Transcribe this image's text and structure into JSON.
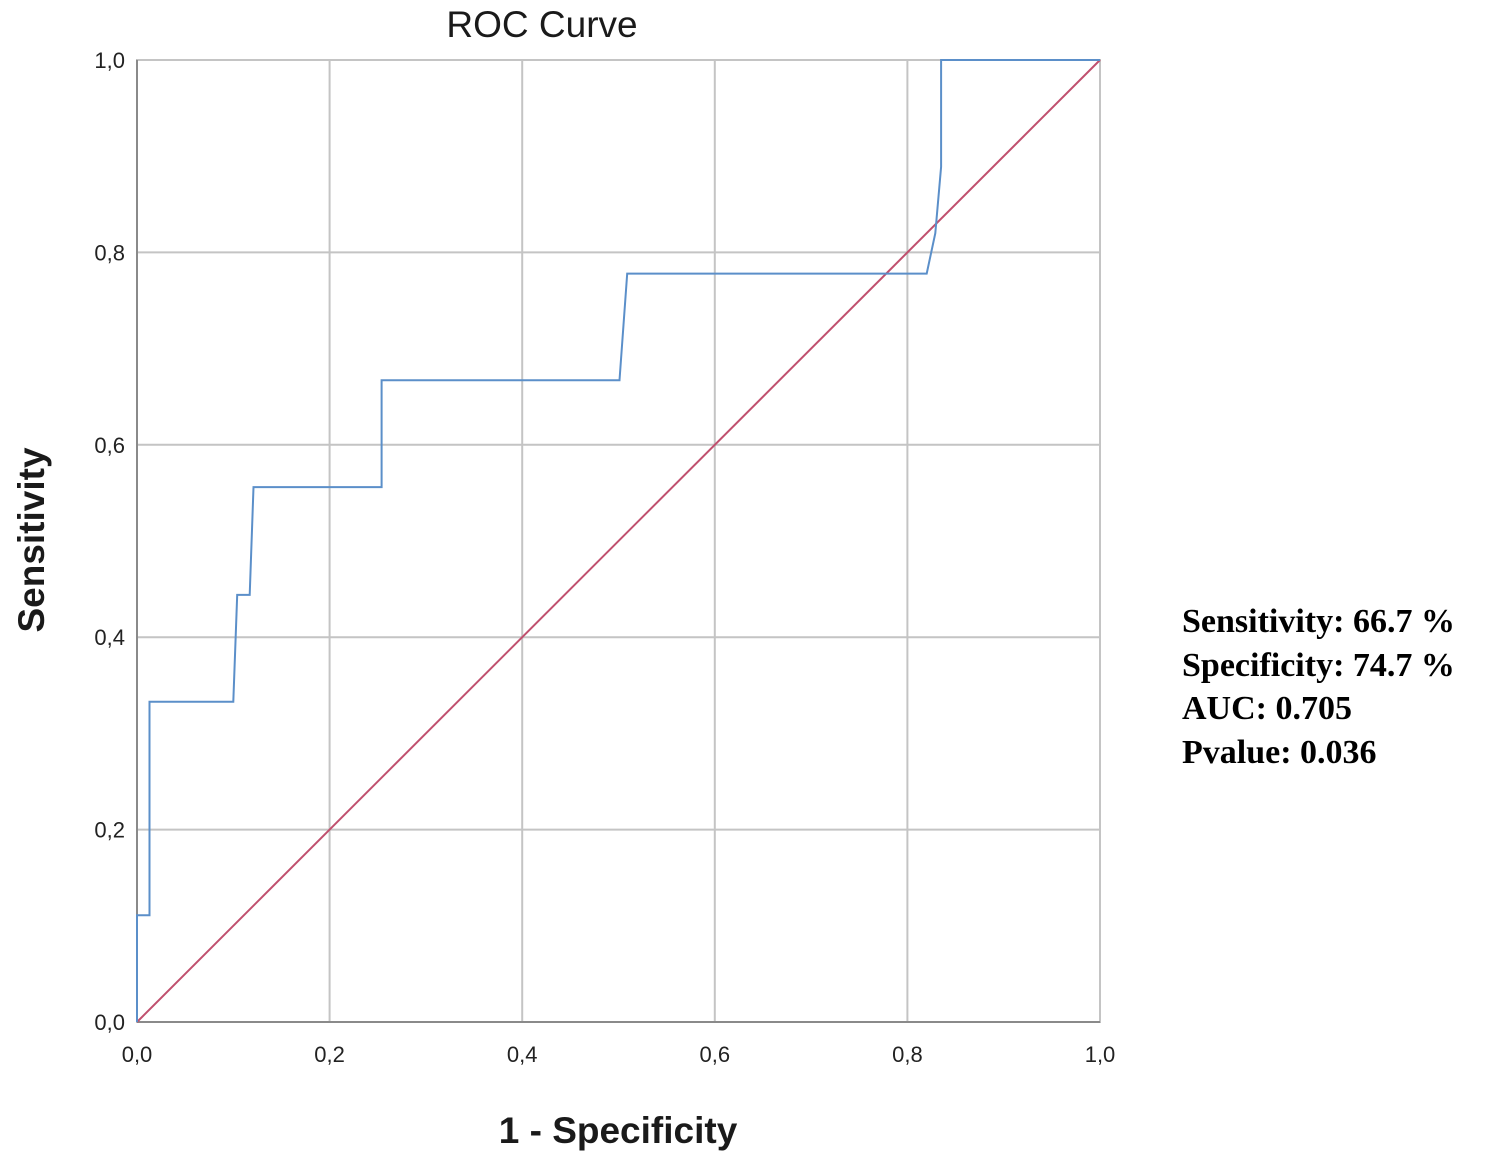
{
  "chart_data": {
    "type": "line",
    "title": "ROC Curve",
    "xlabel": "1 - Specificity",
    "ylabel": "Sensitivity",
    "xlim": [
      0,
      1
    ],
    "ylim": [
      0,
      1
    ],
    "grid": true,
    "x_ticks": [
      {
        "value": 0.0,
        "label": "0,0"
      },
      {
        "value": 0.2,
        "label": "0,2"
      },
      {
        "value": 0.4,
        "label": "0,4"
      },
      {
        "value": 0.6,
        "label": "0,6"
      },
      {
        "value": 0.8,
        "label": "0,8"
      },
      {
        "value": 1.0,
        "label": "1,0"
      }
    ],
    "y_ticks": [
      {
        "value": 0.0,
        "label": "0,0"
      },
      {
        "value": 0.2,
        "label": "0,2"
      },
      {
        "value": 0.4,
        "label": "0,4"
      },
      {
        "value": 0.6,
        "label": "0,6"
      },
      {
        "value": 0.8,
        "label": "0,8"
      },
      {
        "value": 1.0,
        "label": "1,0"
      }
    ],
    "series": [
      {
        "name": "roc-curve",
        "color": "#5b8fc9",
        "x": [
          0.0,
          0.0,
          0.013,
          0.013,
          0.1,
          0.104,
          0.117,
          0.121,
          0.254,
          0.254,
          0.501,
          0.509,
          0.82,
          0.829,
          0.835,
          0.835,
          1.0
        ],
        "y": [
          0.0,
          0.111,
          0.111,
          0.333,
          0.333,
          0.444,
          0.444,
          0.556,
          0.556,
          0.667,
          0.667,
          0.778,
          0.778,
          0.82,
          0.889,
          1.0,
          1.0
        ]
      },
      {
        "name": "reference-line",
        "color": "#c0506e",
        "x": [
          0.0,
          1.0
        ],
        "y": [
          0.0,
          1.0
        ]
      }
    ]
  },
  "stats": {
    "sensitivity": "Sensitivity: 66.7 %",
    "specificity": "Specificity: 74.7 %",
    "auc": "AUC: 0.705",
    "pvalue": "Pvalue: 0.036"
  }
}
